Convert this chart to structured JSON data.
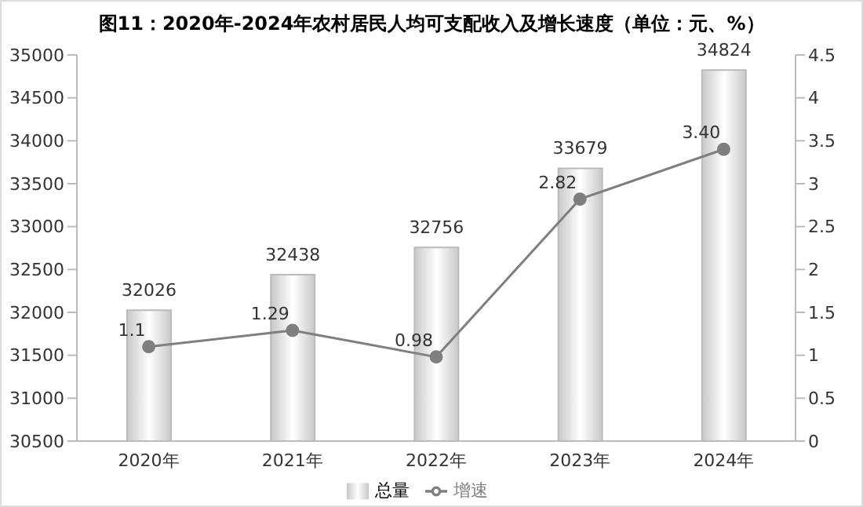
{
  "chart_data": {
    "type": "bar",
    "title": "图11：2020年-2024年农村居民人均可支配收入及增长速度（单位：元、%）",
    "categories": [
      "2020年",
      "2021年",
      "2022年",
      "2023年",
      "2024年"
    ],
    "series": [
      {
        "name": "总量",
        "color": "#c8c8c8",
        "values": [
          32026,
          32438,
          32756,
          33679,
          34824
        ],
        "value_labels": [
          "32026",
          "32438",
          "32756",
          "33679",
          "34824"
        ]
      },
      {
        "name": "增速",
        "type": "line",
        "axis": "y2",
        "color": "#7f7f7f",
        "values": [
          1.1,
          1.29,
          0.98,
          2.82,
          3.4
        ],
        "value_labels": [
          "1.1",
          "1.29",
          "0.98",
          "2.82",
          "3.40"
        ]
      }
    ],
    "ylim": [
      30500,
      35000
    ],
    "yticks": [
      30500,
      31000,
      31500,
      32000,
      32500,
      33000,
      33500,
      34000,
      34500,
      35000
    ],
    "y2lim": [
      0,
      4.5
    ],
    "y2ticks": [
      0,
      0.5,
      1,
      1.5,
      2,
      2.5,
      3,
      3.5,
      4,
      4.5
    ],
    "legend": "bottom",
    "grid": false,
    "marker": "circle",
    "line_style": "solid"
  }
}
